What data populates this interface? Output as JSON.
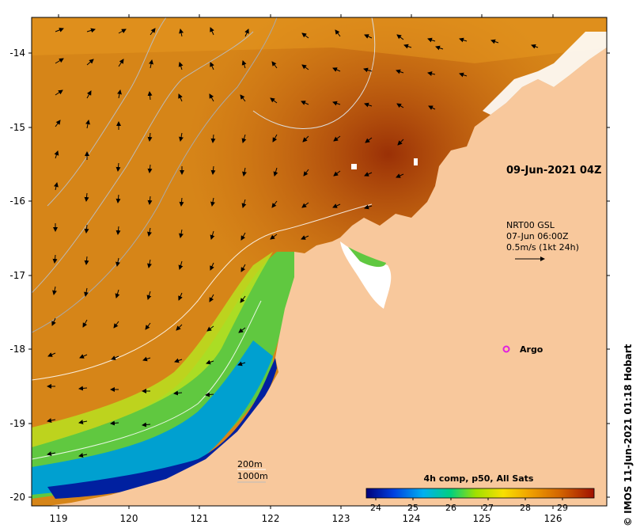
{
  "map": {
    "date_stamp": "09-Jun-2021 04Z",
    "current_legend": {
      "line1": "NRT00 GSL",
      "line2": "07-Jun 06:00Z",
      "line3": "0.5m/s (1kt 24h)"
    },
    "argo_label": "Argo",
    "contours": {
      "label_200": "200m",
      "label_1000": "1000m"
    },
    "credit": "© IMOS 11-Jun-2021 01:18 Hobart",
    "lat_ticks": [
      "-14",
      "-15",
      "-16",
      "-17",
      "-18",
      "-19",
      "-20"
    ],
    "lon_ticks": [
      "119",
      "120",
      "121",
      "122",
      "123",
      "124",
      "125",
      "126"
    ],
    "colorbar": {
      "title": "4h comp, p50, All Sats",
      "ticks": [
        "24",
        "25",
        "26",
        "27",
        "28",
        "29"
      ],
      "colors": [
        "#00007a",
        "#0040e0",
        "#00b0f0",
        "#00d080",
        "#a0e000",
        "#f8e000",
        "#f0a000",
        "#d06000",
        "#a01000"
      ]
    },
    "colors": {
      "land": "#f8c89c",
      "sea_warm": "#d07a10",
      "sea_hot": "#a84008",
      "argo": "#e020e0"
    }
  }
}
